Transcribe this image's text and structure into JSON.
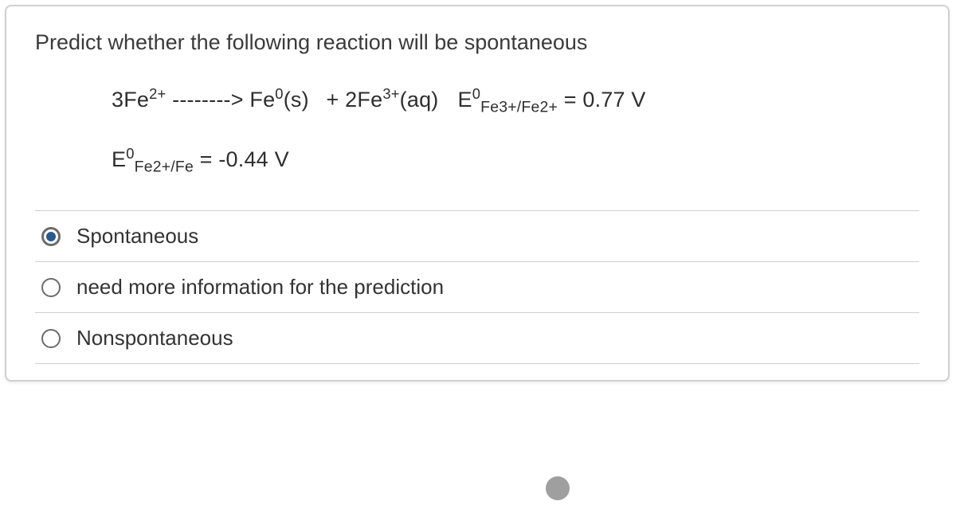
{
  "prompt": "Predict whether the following reaction will be spontaneous",
  "eq": {
    "coeff1": "3Fe",
    "sup1": "2+",
    "dashes": " --------> ",
    "fe": "Fe",
    "zero": "0",
    "s": "(s)",
    "plus": " + 2Fe",
    "sup3": "3+",
    "aq": "(aq)",
    "E1a": "E",
    "E1z": "0",
    "E1sub": "Fe3+/Fe2+",
    "E1val": " = 0.77 V",
    "E2a": "E",
    "E2z": "0",
    "E2sub": "Fe2+/Fe",
    "E2val": " = -0.44 V"
  },
  "options": [
    {
      "label": "Spontaneous",
      "selected": true
    },
    {
      "label": "need more information for the prediction",
      "selected": false
    },
    {
      "label": "Nonspontaneous",
      "selected": false
    }
  ],
  "style": {
    "text_color": "#313131",
    "border_color": "#cfcfcf",
    "radio_fill": "#2b5a8a",
    "font_size_prompt": 27,
    "font_size_eq": 27,
    "font_size_option": 26,
    "background": "#ffffff",
    "cursor_dot_color": "#9f9f9f"
  }
}
